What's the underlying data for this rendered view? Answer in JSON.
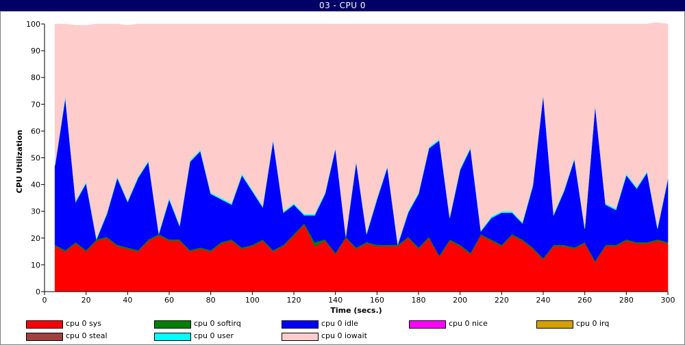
{
  "window": {
    "title": "03 - CPU 0"
  },
  "chart_data": {
    "type": "area",
    "stacked": true,
    "title": "",
    "xlabel": "Time (secs.)",
    "ylabel": "CPU Utilization",
    "xlim": [
      0,
      300
    ],
    "ylim": [
      0,
      100
    ],
    "xticks": [
      0,
      20,
      40,
      60,
      80,
      100,
      120,
      140,
      160,
      180,
      200,
      220,
      240,
      260,
      280,
      300
    ],
    "yticks": [
      0,
      10,
      20,
      30,
      40,
      50,
      60,
      70,
      80,
      90,
      100
    ],
    "grid": false,
    "legend_position": "bottom",
    "x": [
      5,
      10,
      15,
      20,
      25,
      30,
      35,
      40,
      45,
      50,
      55,
      60,
      65,
      70,
      75,
      80,
      85,
      90,
      95,
      100,
      105,
      110,
      115,
      120,
      125,
      130,
      135,
      140,
      145,
      150,
      155,
      160,
      165,
      170,
      175,
      180,
      185,
      190,
      195,
      200,
      205,
      210,
      215,
      220,
      225,
      230,
      235,
      240,
      245,
      250,
      255,
      260,
      265,
      270,
      275,
      280,
      285,
      290,
      295,
      300
    ],
    "series": [
      {
        "name": "cpu 0 sys",
        "color": "#ff0000",
        "values": [
          17,
          15,
          18,
          15,
          19,
          20,
          17,
          16,
          15,
          19,
          21,
          19,
          19,
          15,
          16,
          15,
          18,
          19,
          16,
          17,
          19,
          15,
          17,
          21,
          25,
          17,
          19,
          14,
          20,
          16,
          18,
          17,
          17,
          17,
          20,
          16,
          20,
          13,
          19,
          17,
          14,
          21,
          19,
          17,
          21,
          19,
          16,
          12,
          17,
          17,
          16,
          18,
          11,
          17,
          17,
          19,
          18,
          18,
          19,
          18
        ]
      },
      {
        "name": "cpu 0 softirq",
        "color": "#008000",
        "values": [
          0.5,
          0.5,
          0.5,
          0.5,
          0.5,
          0.5,
          0.5,
          0.5,
          0.5,
          0.5,
          0.5,
          0.5,
          0.5,
          0.5,
          0.5,
          0.5,
          0.5,
          0.5,
          0.5,
          0.5,
          0.5,
          0.5,
          0.5,
          0.5,
          0.5,
          1.5,
          0.5,
          0.5,
          0.5,
          0.5,
          0.5,
          0.5,
          0.5,
          0.5,
          0.5,
          0.5,
          0.5,
          0.5,
          0.5,
          0.5,
          0.5,
          0.5,
          0.5,
          0.5,
          0.5,
          0.5,
          0.5,
          0.5,
          0.5,
          0.5,
          0.5,
          0.5,
          0.5,
          0.5,
          0.5,
          0.5,
          0.5,
          0.5,
          0.5,
          0.5
        ]
      },
      {
        "name": "cpu 0 idle",
        "color": "#0000ff",
        "values": [
          29.5,
          57,
          15,
          25,
          0,
          8.5,
          25,
          17,
          27,
          29,
          0,
          15,
          5,
          33,
          36,
          21,
          16,
          13,
          27,
          20,
          12,
          41,
          12,
          11,
          3,
          10,
          17,
          39,
          0,
          32,
          3,
          17,
          29,
          0,
          9,
          20,
          33,
          43,
          8,
          28,
          39,
          1,
          8,
          12,
          8,
          6,
          23,
          61,
          11,
          20,
          33,
          5,
          58,
          15,
          13,
          24,
          20,
          26,
          4,
          23.5
        ]
      },
      {
        "name": "cpu 0 nice",
        "color": "#ff00ff",
        "values": [
          0,
          0,
          0,
          0,
          0,
          0,
          0,
          0,
          0,
          0,
          0,
          0,
          0,
          0,
          0,
          0,
          0,
          0,
          0,
          0,
          0,
          0,
          0,
          0,
          0,
          0,
          0,
          0,
          0,
          0,
          0,
          0,
          0,
          0,
          0,
          0,
          0,
          0,
          0,
          0,
          0,
          0,
          0,
          0,
          0,
          0,
          0,
          0,
          0,
          0,
          0,
          0,
          0,
          0,
          0,
          0,
          0,
          0,
          0,
          0
        ]
      },
      {
        "name": "cpu 0 irq",
        "color": "#d4a000",
        "values": [
          0,
          0,
          0,
          0,
          0,
          0,
          0,
          0,
          0,
          0,
          0,
          0,
          0,
          0,
          0,
          0,
          0,
          0,
          0,
          0,
          0,
          0,
          0,
          0,
          0,
          0,
          0,
          0,
          0,
          0,
          0,
          0,
          0,
          0,
          0,
          0,
          0,
          0,
          0,
          0,
          0,
          0,
          0,
          0,
          0,
          0,
          0,
          0,
          0,
          0,
          0,
          0,
          0,
          0,
          0,
          0,
          0,
          0,
          0,
          0
        ]
      },
      {
        "name": "cpu 0 steal",
        "color": "#a04040",
        "values": [
          0,
          0,
          0,
          0,
          0,
          0,
          0,
          0,
          0,
          0,
          0,
          0,
          0,
          0,
          0,
          0,
          0,
          0,
          0,
          0,
          0,
          0,
          0,
          0,
          0,
          0,
          0,
          0,
          0,
          0,
          0,
          0,
          0,
          0,
          0,
          0,
          0,
          0,
          0,
          0,
          0,
          0,
          0,
          0,
          0,
          0,
          0,
          0,
          0,
          0,
          0,
          0,
          0,
          0,
          0,
          0,
          0,
          0,
          0,
          0
        ]
      },
      {
        "name": "cpu 0 user",
        "color": "#00ffff",
        "values": [
          0.5,
          0.6,
          0.5,
          0.5,
          0.5,
          0.5,
          0.5,
          0.5,
          0.5,
          0.5,
          0.5,
          0.5,
          0.5,
          0.5,
          0.5,
          0.5,
          0.5,
          0.5,
          0.5,
          0.5,
          0.5,
          0.5,
          0.5,
          0.5,
          0.5,
          0.5,
          0.5,
          0.5,
          0.5,
          0.5,
          0.5,
          0.5,
          0.5,
          0.5,
          0.5,
          0.5,
          0.5,
          0.5,
          0.5,
          0.5,
          0.5,
          0.5,
          0.5,
          0.5,
          0.5,
          0.5,
          0.5,
          0.5,
          0.5,
          0.5,
          0.5,
          0.5,
          0.5,
          0.5,
          0.5,
          0.5,
          0.5,
          0.5,
          0.5,
          0.5
        ]
      },
      {
        "name": "cpu 0 iowait",
        "color": "#ffcccc",
        "values": [
          52.5,
          26.9,
          65.5,
          58.5,
          80,
          70.5,
          57,
          65.5,
          57,
          51,
          78,
          65,
          75,
          51,
          47,
          63,
          65,
          67,
          56,
          62,
          68,
          43,
          70,
          67,
          71,
          71,
          63,
          46,
          79,
          51,
          78,
          65,
          53,
          82,
          70,
          63,
          46,
          43,
          72,
          54,
          46,
          77,
          72,
          70,
          70,
          74,
          60,
          26,
          71,
          62,
          50,
          76,
          30,
          67,
          69,
          56,
          61,
          55,
          76.5,
          57.5
        ]
      }
    ]
  }
}
